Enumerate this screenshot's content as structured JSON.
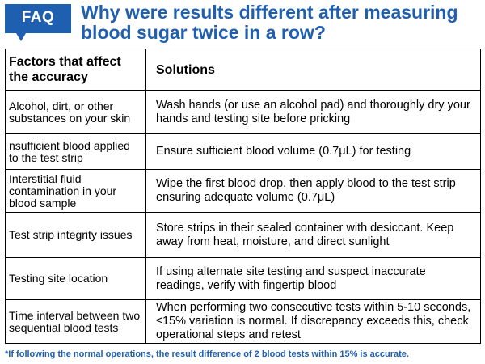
{
  "badge": {
    "label": "FAQ",
    "color": "#1f5fb0"
  },
  "title": {
    "line1": "Why were results different after measuring",
    "line2": "blood sugar twice in a row?",
    "color": "#1f5fb0"
  },
  "table": {
    "headers": {
      "factor_line1": "Factors that affect",
      "factor_line2": "the accuracy",
      "solution": "Solutions"
    },
    "rows": [
      {
        "factor": "Alcohol, dirt, or other substances on your skin",
        "solution": "Wash hands (or use an alcohol pad) and thoroughly dry your hands and testing site before pricking"
      },
      {
        "factor": "nsufficient blood applied to the test strip",
        "solution": "Ensure sufficient blood volume (0.7μL) for testing"
      },
      {
        "factor": "Interstitial fluid contamination in your blood sample",
        "solution": "Wipe the first blood drop, then apply blood to the test strip ensuring adequate volume (0.7μL)"
      },
      {
        "factor": "Test strip integrity issues",
        "solution": "Store strips in their sealed container with desiccant. Keep away from heat, moisture, and direct sunlight"
      },
      {
        "factor": "Testing site location",
        "solution": "If using alternate site testing and suspect inaccurate readings, verify with fingertip blood"
      },
      {
        "factor": "Time interval between two sequential blood tests",
        "solution": "When performing two consecutive tests within 5-10 seconds, ≤15% variation is normal. If discrepancy exceeds this, check operational steps and retest"
      }
    ]
  },
  "footnote": "*If following the normal operations, the result difference of 2 blood tests within 15% is accurate."
}
